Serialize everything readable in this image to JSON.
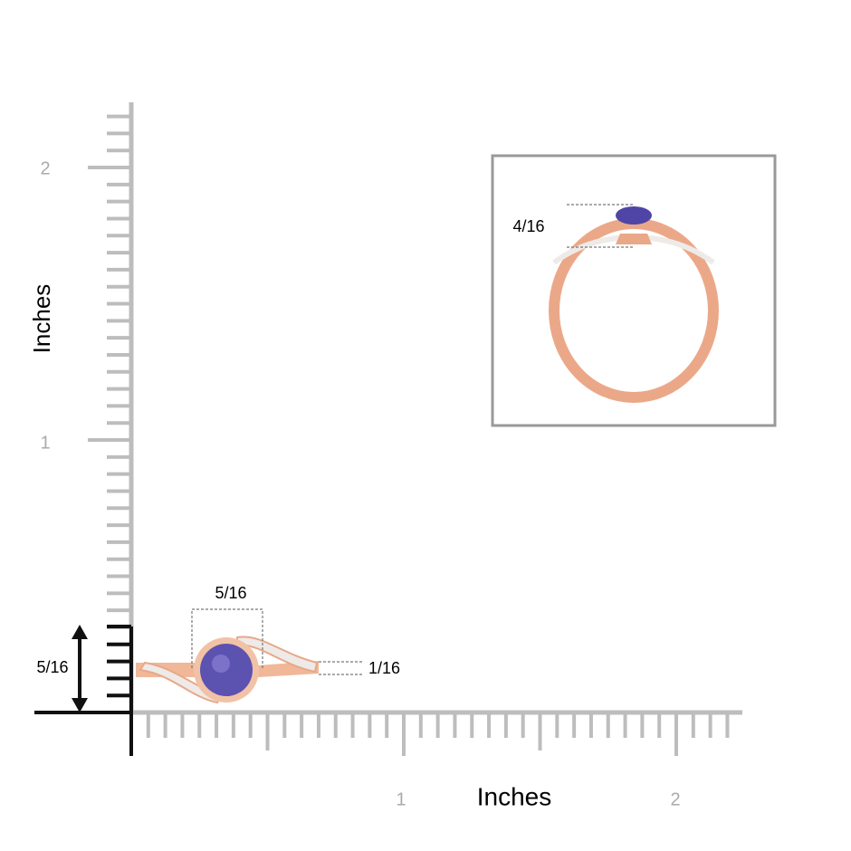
{
  "y_axis": {
    "label": "Inches",
    "ticks": [
      "1",
      "2"
    ]
  },
  "x_axis": {
    "label": "Inches",
    "ticks": [
      "1",
      "2"
    ]
  },
  "top_view": {
    "width_label": "5/16",
    "height_label": "5/16",
    "band_label": "1/16"
  },
  "side_view": {
    "height_label": "4/16"
  }
}
